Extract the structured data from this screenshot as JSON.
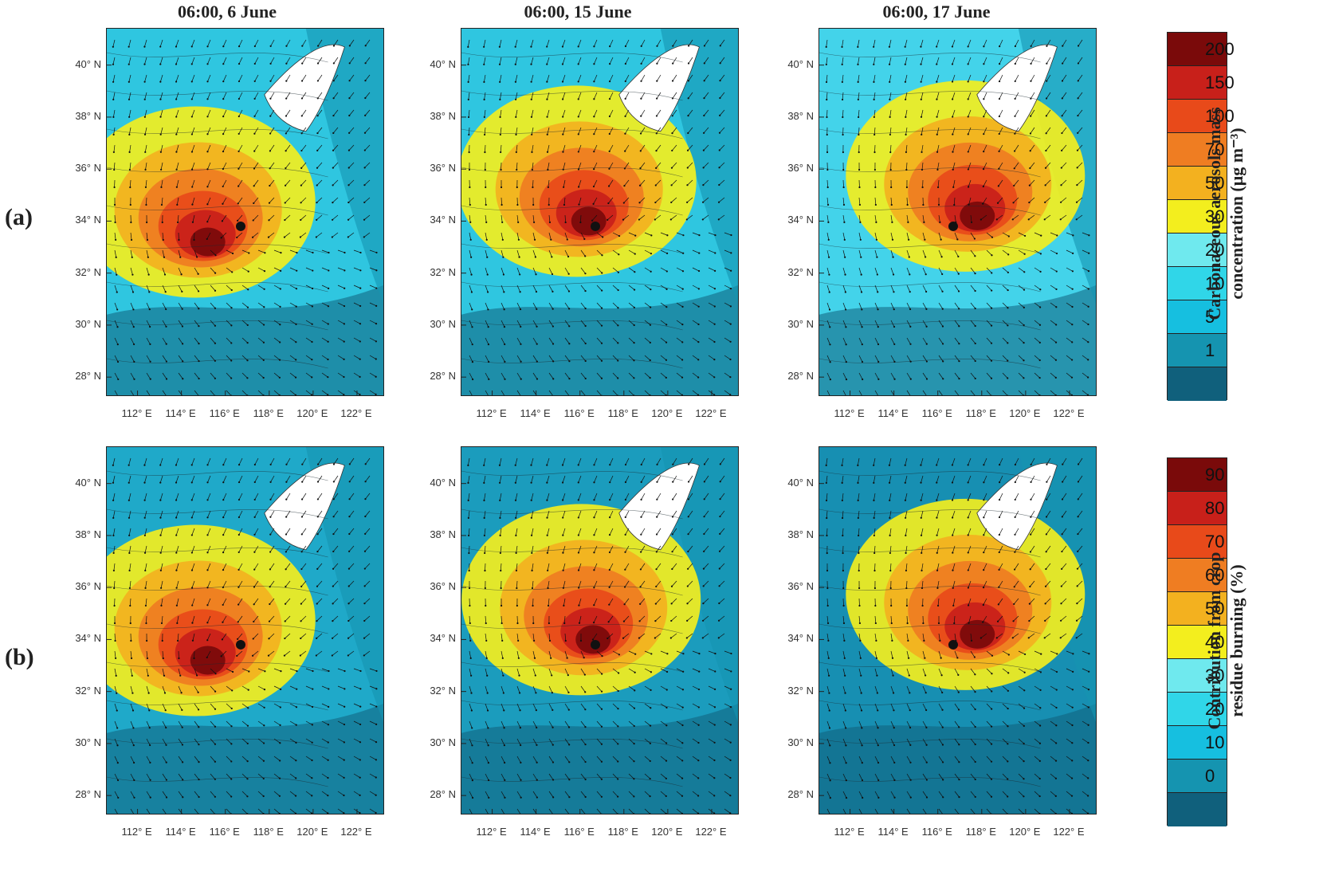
{
  "column_titles": [
    "06:00, 6 June",
    "06:00, 15 June",
    "06:00, 17 June"
  ],
  "row_labels": [
    "(a)",
    "(b)"
  ],
  "lat_ticks": [
    "40° N",
    "38° N",
    "36° N",
    "34° N",
    "32° N",
    "30° N",
    "28° N"
  ],
  "lon_ticks": [
    "112° E",
    "114° E",
    "116° E",
    "118° E",
    "120° E",
    "122° E"
  ],
  "map_extent": {
    "lon": [
      110.6,
      123.2
    ],
    "lat": [
      27.3,
      41.4
    ]
  },
  "marker": {
    "lon": 116.7,
    "lat": 33.8,
    "color": "#111111"
  },
  "legend_a": {
    "title_line1": "Carbonaceous aerosols mass",
    "title_line2": "concentration (μg m⁻³)",
    "ticks": [
      "200",
      "150",
      "100",
      "70",
      "50",
      "30",
      "20",
      "10",
      "5",
      "1"
    ],
    "colors": [
      "#7a0a0a",
      "#c8201a",
      "#e84a1a",
      "#ef7d22",
      "#f3b11f",
      "#f3ee1e",
      "#6fe9ee",
      "#30d6e8",
      "#16bfe0",
      "#1594b0",
      "#10607c"
    ]
  },
  "legend_b": {
    "title_line1": "Contribution from crop",
    "title_line2": "residue burning (%)",
    "ticks": [
      "90",
      "80",
      "70",
      "60",
      "50",
      "40",
      "30",
      "20",
      "10",
      "0"
    ],
    "colors": [
      "#7a0a0a",
      "#c8201a",
      "#e84a1a",
      "#ef7d22",
      "#f3b11f",
      "#f3ee1e",
      "#6fe9ee",
      "#30d6e8",
      "#16bfe0",
      "#1594b0",
      "#10607c"
    ]
  },
  "panels": [
    {
      "id": "a1",
      "background": "#2fc6e0",
      "hotspot_lon": 115.2,
      "hotspot_lat": 33.2
    },
    {
      "id": "a2",
      "background": "#2fc6e0",
      "hotspot_lon": 116.4,
      "hotspot_lat": 34.0
    },
    {
      "id": "a3",
      "background": "#43d3ea",
      "hotspot_lon": 117.8,
      "hotspot_lat": 34.2
    },
    {
      "id": "b1",
      "background": "#1fa9c9",
      "hotspot_lon": 115.2,
      "hotspot_lat": 33.2
    },
    {
      "id": "b2",
      "background": "#1b9cbd",
      "hotspot_lon": 116.6,
      "hotspot_lat": 34.0
    },
    {
      "id": "b3",
      "background": "#178fb2",
      "hotspot_lon": 117.8,
      "hotspot_lat": 34.2
    }
  ]
}
